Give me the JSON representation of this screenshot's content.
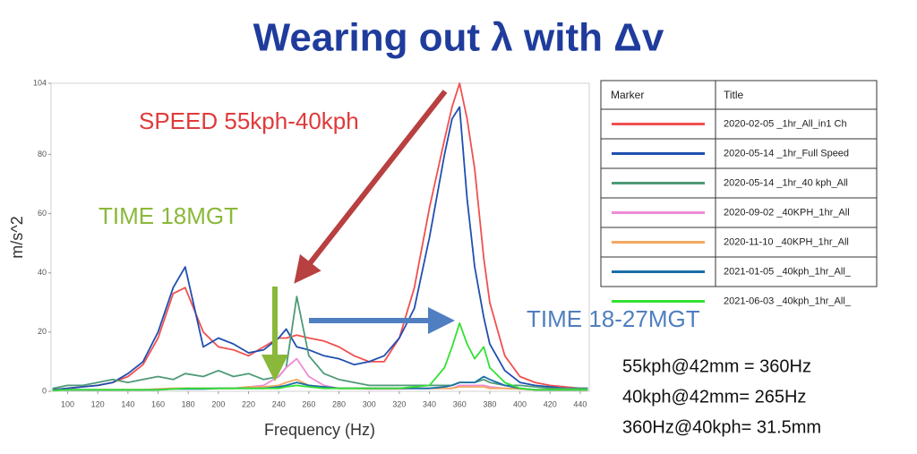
{
  "chart_data": {
    "type": "line",
    "title": "Wearing out λ with Δv",
    "x_label": "Frequency (Hz)",
    "y_label": "m/s^2",
    "xlim": [
      89,
      446
    ],
    "ylim": [
      0,
      104
    ],
    "xticks": [
      100,
      120,
      140,
      160,
      180,
      200,
      220,
      240,
      260,
      280,
      300,
      320,
      340,
      360,
      380,
      400,
      420,
      440
    ],
    "yticks": [
      0,
      20,
      40,
      60,
      80,
      104
    ],
    "grid": false,
    "legend_headers": [
      "Marker",
      "Title"
    ],
    "x": [
      90,
      100,
      110,
      120,
      130,
      140,
      150,
      160,
      170,
      178,
      190,
      200,
      210,
      220,
      230,
      240,
      245,
      252,
      260,
      270,
      280,
      290,
      300,
      310,
      320,
      330,
      340,
      350,
      355,
      360,
      365,
      370,
      376,
      380,
      390,
      400,
      410,
      420,
      430,
      440,
      445
    ],
    "series": [
      {
        "name": "2020-02-05 _1hr_All_in1  Ch",
        "color": "#f05050",
        "values": [
          0.5,
          1,
          1.5,
          2,
          3,
          5,
          9,
          18,
          33,
          35,
          20,
          15,
          14,
          12,
          15,
          18,
          18,
          19,
          18,
          17,
          15,
          12,
          10,
          10,
          18,
          35,
          62,
          85,
          96,
          104,
          92,
          75,
          45,
          30,
          12,
          5,
          3,
          2,
          1.5,
          1,
          1
        ]
      },
      {
        "name": "2020-05-14 _1hr_Full Speed",
        "color": "#1f4fb0",
        "values": [
          0.5,
          1,
          1.5,
          2,
          3,
          6,
          10,
          20,
          35,
          42,
          15,
          18,
          16,
          13,
          14,
          18,
          21,
          15,
          14,
          12,
          11,
          9,
          10,
          12,
          18,
          28,
          52,
          80,
          92,
          96,
          65,
          42,
          25,
          16,
          7,
          3,
          2,
          1.5,
          1,
          1,
          1
        ]
      },
      {
        "name": "2020-05-14 _1hr_40 kph_All",
        "color": "#4e9a78",
        "values": [
          1,
          2,
          2,
          3,
          4,
          3,
          4,
          5,
          4,
          6,
          5,
          7,
          5,
          6,
          4,
          5,
          8,
          32,
          12,
          6,
          4,
          3,
          2,
          2,
          2,
          2,
          2,
          2,
          2,
          3,
          3,
          3,
          4,
          3,
          2,
          2,
          1.5,
          1,
          1,
          1,
          1
        ]
      },
      {
        "name": "2020-09-02 _40KPH_1hr_All",
        "color": "#f08ad8",
        "values": [
          0.3,
          0.5,
          0.5,
          0.5,
          0.5,
          0.5,
          0.5,
          0.8,
          1,
          1,
          1,
          1,
          1,
          1.5,
          2,
          5,
          8,
          11,
          5,
          2,
          1,
          1,
          0.8,
          0.8,
          0.8,
          1,
          1,
          1,
          1,
          2,
          2,
          2,
          2,
          1.5,
          1,
          0.8,
          0.5,
          0.5,
          0.5,
          0.5,
          0.5
        ]
      },
      {
        "name": "2020-11-10 _40KPH_1hr_All",
        "color": "#f4a860",
        "values": [
          0.3,
          0.5,
          0.5,
          0.5,
          0.5,
          0.5,
          0.5,
          0.8,
          1,
          1,
          1,
          1,
          1,
          1.5,
          1.5,
          2,
          3,
          4,
          2,
          1.5,
          1,
          1,
          1,
          1,
          1,
          1,
          1,
          1,
          1,
          1.5,
          1.5,
          1.5,
          1.5,
          1,
          1,
          0.8,
          0.5,
          0.5,
          0.5,
          0.5,
          0.5
        ]
      },
      {
        "name": "2021-01-05 _40kph_1hr_All_",
        "color": "#1a6ea8",
        "values": [
          0.3,
          0.5,
          0.5,
          0.5,
          0.5,
          0.5,
          0.5,
          0.5,
          0.8,
          0.8,
          0.8,
          1,
          1,
          1,
          1,
          1.5,
          2,
          3,
          2,
          1.5,
          1,
          1,
          1,
          1,
          1,
          1,
          1,
          1.5,
          2,
          3,
          3,
          3,
          5,
          4,
          2,
          1,
          0.5,
          0.5,
          0.5,
          0.5,
          0.5
        ]
      },
      {
        "name": "2021-06-03 _40kph_1hr_All_",
        "color": "#33e033",
        "values": [
          0.3,
          0.5,
          0.5,
          0.5,
          0.5,
          0.5,
          0.5,
          0.5,
          0.8,
          1,
          1,
          1,
          1,
          1,
          1,
          1,
          1.5,
          2,
          1.5,
          1,
          1,
          1,
          1,
          1,
          1,
          1.5,
          2,
          8,
          15,
          23,
          16,
          11,
          15,
          8,
          3,
          1,
          0.5,
          0.5,
          0.5,
          0.5,
          0.5
        ]
      }
    ],
    "annotations": [
      {
        "text": "SPEED 55kph-40kph",
        "color": "#e03a3a"
      },
      {
        "text": "TIME 18MGT",
        "color": "#8ab83a"
      },
      {
        "text": "TIME 18-27MGT",
        "color": "#4f7fc0"
      }
    ],
    "notes": [
      "55kph@42mm = 360Hz",
      "40kph@42mm= 265Hz",
      "360Hz@40kph= 31.5mm"
    ]
  }
}
